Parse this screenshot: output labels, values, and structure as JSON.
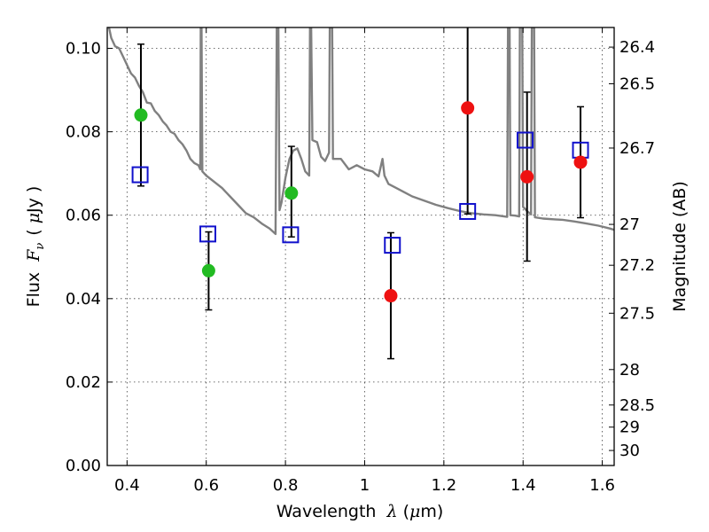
{
  "chart_data": {
    "type": "scatter",
    "xlabel": "Wavelength  λ (μm)",
    "ylabel": "Flux  F_ν  ( μJy )",
    "y2label": "Magnitude (AB)",
    "xlim": [
      0.35,
      1.63
    ],
    "ylim": [
      0.0,
      0.105
    ],
    "grid": true,
    "x_ticks": [
      0.4,
      0.6,
      0.8,
      1.0,
      1.2,
      1.4,
      1.6
    ],
    "x_tick_labels": [
      "0.4",
      "0.6",
      "0.8",
      "1",
      "1.2",
      "1.4",
      "1.6"
    ],
    "y_ticks": [
      0.0,
      0.02,
      0.04,
      0.06,
      0.08,
      0.1
    ],
    "y_tick_labels": [
      "0.00",
      "0.02",
      "0.04",
      "0.06",
      "0.08",
      "0.10"
    ],
    "y2_ticks": [
      {
        "label": "26.4",
        "flux": 0.1003
      },
      {
        "label": "26.5",
        "flux": 0.0915
      },
      {
        "label": "26.7",
        "flux": 0.0761
      },
      {
        "label": "27",
        "flux": 0.0578
      },
      {
        "label": "27.2",
        "flux": 0.048
      },
      {
        "label": "27.5",
        "flux": 0.0365
      },
      {
        "label": "28",
        "flux": 0.023
      },
      {
        "label": "28.5",
        "flux": 0.0145
      },
      {
        "label": "29",
        "flux": 0.0092
      },
      {
        "label": "30",
        "flux": 0.0036
      }
    ],
    "colors": {
      "observed_green": "#22bb22",
      "observed_red": "#ee1111",
      "model": "#1111cc",
      "template": "#808080",
      "errorbar": "#000000"
    },
    "series": [
      {
        "kind": "observed",
        "marker": "circle",
        "points": [
          {
            "x": 0.435,
            "y": 0.084,
            "err_low": 0.067,
            "err_high": 0.101,
            "color": "observed_green"
          },
          {
            "x": 0.606,
            "y": 0.0467,
            "err_low": 0.0373,
            "err_high": 0.056,
            "color": "observed_green"
          },
          {
            "x": 0.815,
            "y": 0.0653,
            "err_low": 0.0548,
            "err_high": 0.0765,
            "color": "observed_green"
          },
          {
            "x": 1.066,
            "y": 0.0407,
            "err_low": 0.0256,
            "err_high": 0.0558,
            "color": "observed_red"
          },
          {
            "x": 1.26,
            "y": 0.0857,
            "err_low": 0.0603,
            "err_high": 0.112,
            "color": "observed_red"
          },
          {
            "x": 1.41,
            "y": 0.0692,
            "err_low": 0.049,
            "err_high": 0.0895,
            "color": "observed_red"
          },
          {
            "x": 1.545,
            "y": 0.0727,
            "err_low": 0.0594,
            "err_high": 0.086,
            "color": "observed_red"
          }
        ]
      },
      {
        "kind": "model",
        "marker": "open-square",
        "points": [
          {
            "x": 0.433,
            "y": 0.0697
          },
          {
            "x": 0.604,
            "y": 0.0555
          },
          {
            "x": 0.813,
            "y": 0.0553
          },
          {
            "x": 1.07,
            "y": 0.0528
          },
          {
            "x": 1.26,
            "y": 0.0609
          },
          {
            "x": 1.405,
            "y": 0.078
          },
          {
            "x": 1.545,
            "y": 0.0756
          }
        ]
      },
      {
        "kind": "template",
        "marker": "line",
        "points": [
          [
            0.35,
            0.107
          ],
          [
            0.36,
            0.1025
          ],
          [
            0.37,
            0.1005
          ],
          [
            0.38,
            0.1
          ],
          [
            0.39,
            0.098
          ],
          [
            0.4,
            0.096
          ],
          [
            0.41,
            0.094
          ],
          [
            0.42,
            0.093
          ],
          [
            0.43,
            0.091
          ],
          [
            0.44,
            0.0895
          ],
          [
            0.45,
            0.087
          ],
          [
            0.46,
            0.0868
          ],
          [
            0.47,
            0.085
          ],
          [
            0.48,
            0.084
          ],
          [
            0.49,
            0.0825
          ],
          [
            0.5,
            0.0815
          ],
          [
            0.51,
            0.08
          ],
          [
            0.52,
            0.0795
          ],
          [
            0.53,
            0.078
          ],
          [
            0.54,
            0.077
          ],
          [
            0.55,
            0.0755
          ],
          [
            0.56,
            0.0735
          ],
          [
            0.57,
            0.0725
          ],
          [
            0.58,
            0.072
          ],
          [
            0.585,
            0.071
          ],
          [
            0.586,
            0.105
          ],
          [
            0.588,
            0.105
          ],
          [
            0.59,
            0.0705
          ],
          [
            0.6,
            0.0695
          ],
          [
            0.62,
            0.068
          ],
          [
            0.64,
            0.0665
          ],
          [
            0.66,
            0.0645
          ],
          [
            0.68,
            0.0625
          ],
          [
            0.7,
            0.0605
          ],
          [
            0.72,
            0.0595
          ],
          [
            0.74,
            0.058
          ],
          [
            0.76,
            0.0568
          ],
          [
            0.775,
            0.0555
          ],
          [
            0.778,
            0.105
          ],
          [
            0.782,
            0.105
          ],
          [
            0.785,
            0.0612
          ],
          [
            0.79,
            0.063
          ],
          [
            0.8,
            0.069
          ],
          [
            0.81,
            0.0735
          ],
          [
            0.82,
            0.0755
          ],
          [
            0.83,
            0.076
          ],
          [
            0.84,
            0.0735
          ],
          [
            0.85,
            0.0705
          ],
          [
            0.86,
            0.0695
          ],
          [
            0.862,
            0.105
          ],
          [
            0.865,
            0.105
          ],
          [
            0.868,
            0.078
          ],
          [
            0.88,
            0.0775
          ],
          [
            0.89,
            0.074
          ],
          [
            0.9,
            0.073
          ],
          [
            0.91,
            0.075
          ],
          [
            0.912,
            0.105
          ],
          [
            0.918,
            0.105
          ],
          [
            0.92,
            0.0735
          ],
          [
            0.94,
            0.0735
          ],
          [
            0.96,
            0.071
          ],
          [
            0.98,
            0.072
          ],
          [
            1.0,
            0.071
          ],
          [
            1.02,
            0.0705
          ],
          [
            1.035,
            0.0693
          ],
          [
            1.045,
            0.0735
          ],
          [
            1.05,
            0.0695
          ],
          [
            1.06,
            0.0675
          ],
          [
            1.08,
            0.0665
          ],
          [
            1.1,
            0.0655
          ],
          [
            1.12,
            0.0645
          ],
          [
            1.15,
            0.0635
          ],
          [
            1.18,
            0.0625
          ],
          [
            1.21,
            0.0617
          ],
          [
            1.24,
            0.061
          ],
          [
            1.27,
            0.0605
          ],
          [
            1.3,
            0.0602
          ],
          [
            1.33,
            0.06
          ],
          [
            1.36,
            0.0596
          ],
          [
            1.362,
            0.105
          ],
          [
            1.366,
            0.105
          ],
          [
            1.368,
            0.06
          ],
          [
            1.38,
            0.0599
          ],
          [
            1.39,
            0.0597
          ],
          [
            1.392,
            0.105
          ],
          [
            1.398,
            0.105
          ],
          [
            1.4,
            0.062
          ],
          [
            1.41,
            0.061
          ],
          [
            1.42,
            0.0602
          ],
          [
            1.422,
            0.105
          ],
          [
            1.428,
            0.105
          ],
          [
            1.43,
            0.0595
          ],
          [
            1.45,
            0.0592
          ],
          [
            1.48,
            0.059
          ],
          [
            1.5,
            0.0589
          ],
          [
            1.53,
            0.0585
          ],
          [
            1.56,
            0.058
          ],
          [
            1.59,
            0.0575
          ],
          [
            1.62,
            0.0568
          ],
          [
            1.63,
            0.0565
          ]
        ]
      }
    ]
  }
}
